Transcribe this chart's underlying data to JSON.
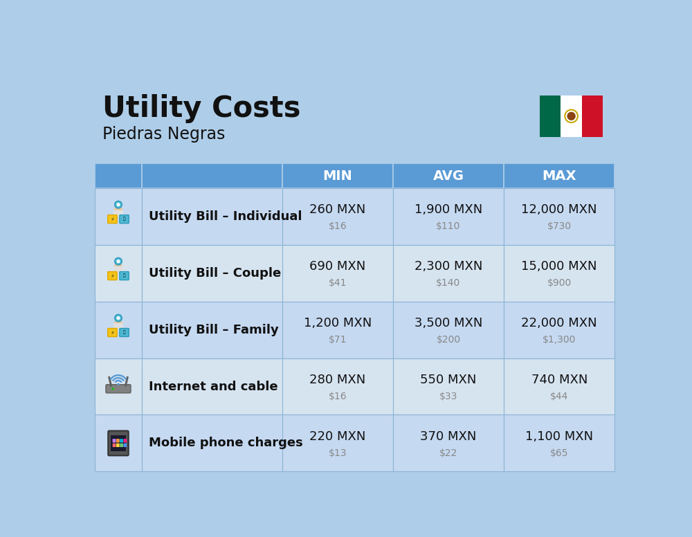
{
  "title": "Utility Costs",
  "subtitle": "Piedras Negras",
  "bg_color": "#aecde8",
  "header_bg_color": "#5b9bd5",
  "row_bg_colors": [
    "#c5d9f1",
    "#d6e4f0"
  ],
  "header_text_color": "#ffffff",
  "col_headers": [
    "MIN",
    "AVG",
    "MAX"
  ],
  "rows": [
    {
      "label": "Utility Bill – Individual",
      "min_mxn": "260 MXN",
      "min_usd": "$16",
      "avg_mxn": "1,900 MXN",
      "avg_usd": "$110",
      "max_mxn": "12,000 MXN",
      "max_usd": "$730"
    },
    {
      "label": "Utility Bill – Couple",
      "min_mxn": "690 MXN",
      "min_usd": "$41",
      "avg_mxn": "2,300 MXN",
      "avg_usd": "$140",
      "max_mxn": "15,000 MXN",
      "max_usd": "$900"
    },
    {
      "label": "Utility Bill – Family",
      "min_mxn": "1,200 MXN",
      "min_usd": "$71",
      "avg_mxn": "3,500 MXN",
      "avg_usd": "$200",
      "max_mxn": "22,000 MXN",
      "max_usd": "$1,300"
    },
    {
      "label": "Internet and cable",
      "min_mxn": "280 MXN",
      "min_usd": "$16",
      "avg_mxn": "550 MXN",
      "avg_usd": "$33",
      "max_mxn": "740 MXN",
      "max_usd": "$44"
    },
    {
      "label": "Mobile phone charges",
      "min_mxn": "220 MXN",
      "min_usd": "$13",
      "avg_mxn": "370 MXN",
      "avg_usd": "$22",
      "max_mxn": "1,100 MXN",
      "max_usd": "$65"
    }
  ],
  "title_fontsize": 30,
  "subtitle_fontsize": 17,
  "header_fontsize": 14,
  "label_fontsize": 13,
  "value_fontsize": 13,
  "usd_fontsize": 10,
  "usd_color": "#888888",
  "title_color": "#111111",
  "subtitle_color": "#111111",
  "label_color": "#111111",
  "value_color": "#111111",
  "flag_green": "#006847",
  "flag_white": "#ffffff",
  "flag_red": "#ce1126",
  "divider_color": "#aecde8",
  "border_color": "#8ab4d4"
}
